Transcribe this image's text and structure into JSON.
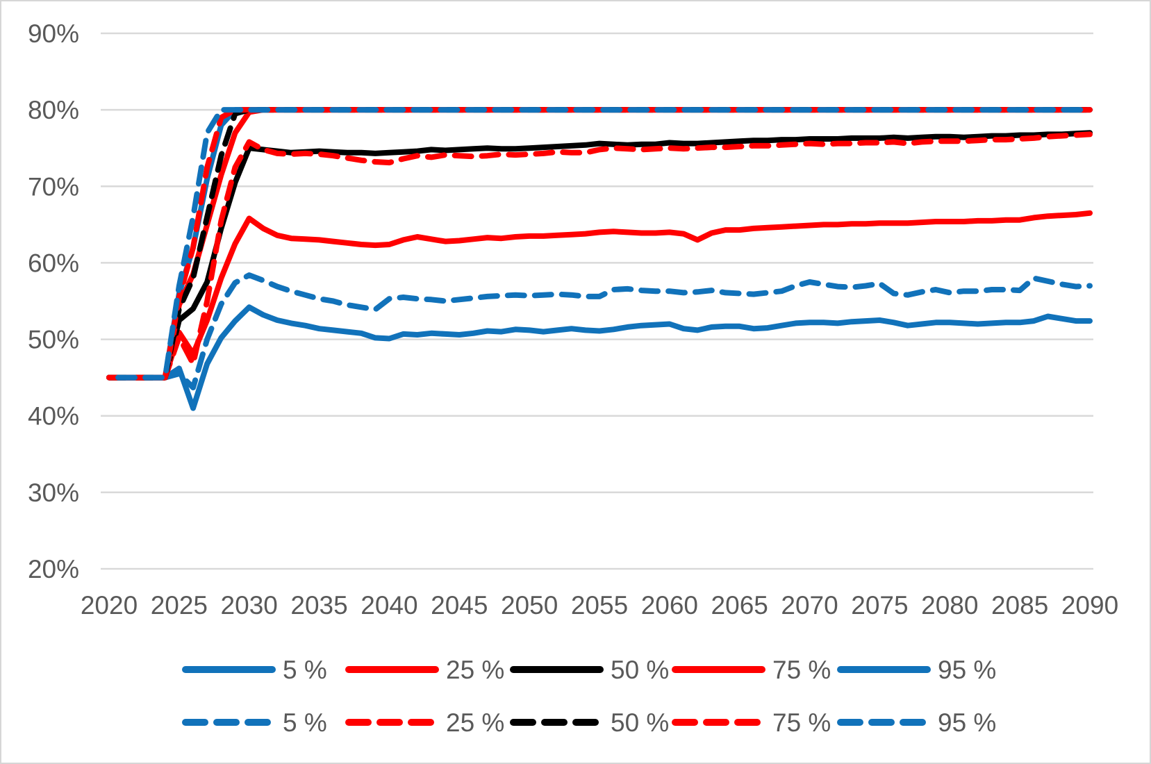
{
  "chart_data": {
    "type": "line",
    "title": "",
    "xlabel": "",
    "ylabel": "",
    "xlim": [
      2020,
      2090
    ],
    "ylim": [
      20,
      90
    ],
    "grid": "horizontal",
    "legend_position": "bottom-two-rows",
    "colors": {
      "blue": "#1172BA",
      "red": "#FF0000",
      "black": "#000000",
      "gridline": "#D9D9D9",
      "axis_text": "#595959",
      "background": "#FFFFFF",
      "frame_border": "#D6D6D6"
    },
    "y_ticks": [
      {
        "value": 90,
        "label": "90%"
      },
      {
        "value": 80,
        "label": "80%"
      },
      {
        "value": 70,
        "label": "70%"
      },
      {
        "value": 60,
        "label": "60%"
      },
      {
        "value": 50,
        "label": "50%"
      },
      {
        "value": 40,
        "label": "40%"
      },
      {
        "value": 30,
        "label": "30%"
      },
      {
        "value": 20,
        "label": "20%"
      }
    ],
    "x_ticks": [
      {
        "value": 2020,
        "label": "2020"
      },
      {
        "value": 2025,
        "label": "2025"
      },
      {
        "value": 2030,
        "label": "2030"
      },
      {
        "value": 2035,
        "label": "2035"
      },
      {
        "value": 2040,
        "label": "2040"
      },
      {
        "value": 2045,
        "label": "2045"
      },
      {
        "value": 2050,
        "label": "2050"
      },
      {
        "value": 2055,
        "label": "2055"
      },
      {
        "value": 2060,
        "label": "2060"
      },
      {
        "value": 2065,
        "label": "2065"
      },
      {
        "value": 2070,
        "label": "2070"
      },
      {
        "value": 2075,
        "label": "2075"
      },
      {
        "value": 2080,
        "label": "2080"
      },
      {
        "value": 2085,
        "label": "2085"
      },
      {
        "value": 2090,
        "label": "2090"
      }
    ],
    "x": [
      2020,
      2021,
      2022,
      2023,
      2024,
      2025,
      2026,
      2027,
      2028,
      2029,
      2030,
      2031,
      2032,
      2033,
      2034,
      2035,
      2036,
      2037,
      2038,
      2039,
      2040,
      2041,
      2042,
      2043,
      2044,
      2045,
      2046,
      2047,
      2048,
      2049,
      2050,
      2051,
      2052,
      2053,
      2054,
      2055,
      2056,
      2057,
      2058,
      2059,
      2060,
      2061,
      2062,
      2063,
      2064,
      2065,
      2066,
      2067,
      2068,
      2069,
      2070,
      2071,
      2072,
      2073,
      2074,
      2075,
      2076,
      2077,
      2078,
      2079,
      2080,
      2081,
      2082,
      2083,
      2084,
      2085,
      2086,
      2087,
      2088,
      2089,
      2090
    ],
    "series": [
      {
        "id": "p5_solid",
        "name": "5 %",
        "color": "#1172BA",
        "dashed": false,
        "dash_offset": 0,
        "values": [
          45,
          45,
          45,
          45,
          45,
          46.2,
          41,
          46.8,
          50.2,
          52.4,
          54.2,
          53.2,
          52.5,
          52.1,
          51.8,
          51.4,
          51.2,
          51,
          50.8,
          50.2,
          50.1,
          50.7,
          50.6,
          50.8,
          50.7,
          50.6,
          50.8,
          51.1,
          51,
          51.3,
          51.2,
          51,
          51.2,
          51.4,
          51.2,
          51.1,
          51.3,
          51.6,
          51.8,
          51.9,
          52,
          51.4,
          51.2,
          51.6,
          51.7,
          51.7,
          51.4,
          51.5,
          51.8,
          52.1,
          52.2,
          52.2,
          52.1,
          52.3,
          52.4,
          52.5,
          52.2,
          51.8,
          52,
          52.2,
          52.2,
          52.1,
          52,
          52.1,
          52.2,
          52.2,
          52.4,
          53,
          52.7,
          52.4,
          52.4
        ]
      },
      {
        "id": "p25_solid",
        "name": "25 %",
        "color": "#FF0000",
        "dashed": false,
        "dash_offset": 0,
        "values": [
          45,
          45,
          45,
          45,
          45,
          50.9,
          48.1,
          52.5,
          58,
          62.5,
          65.8,
          64.5,
          63.6,
          63.2,
          63.1,
          63,
          62.8,
          62.6,
          62.4,
          62.3,
          62.4,
          63,
          63.4,
          63.1,
          62.8,
          62.9,
          63.1,
          63.3,
          63.2,
          63.4,
          63.5,
          63.5,
          63.6,
          63.7,
          63.8,
          64,
          64.1,
          64,
          63.9,
          63.9,
          64,
          63.8,
          63,
          63.9,
          64.3,
          64.3,
          64.5,
          64.6,
          64.7,
          64.8,
          64.9,
          65,
          65,
          65.1,
          65.1,
          65.2,
          65.2,
          65.2,
          65.3,
          65.4,
          65.4,
          65.4,
          65.5,
          65.5,
          65.6,
          65.6,
          65.9,
          66.1,
          66.2,
          66.3,
          66.5
        ]
      },
      {
        "id": "p50_solid",
        "name": "50 %",
        "color": "#000000",
        "dashed": false,
        "dash_offset": 0,
        "values": [
          45,
          45,
          45,
          45,
          45,
          52.5,
          54,
          57.5,
          64.5,
          70.5,
          75,
          74.8,
          74.6,
          74.4,
          74.5,
          74.6,
          74.5,
          74.4,
          74.4,
          74.3,
          74.4,
          74.5,
          74.6,
          74.8,
          74.7,
          74.8,
          74.9,
          75,
          74.9,
          74.9,
          75,
          75.1,
          75.2,
          75.3,
          75.4,
          75.6,
          75.5,
          75.4,
          75.5,
          75.5,
          75.7,
          75.6,
          75.6,
          75.7,
          75.8,
          75.9,
          76,
          76,
          76.1,
          76.1,
          76.2,
          76.2,
          76.2,
          76.3,
          76.3,
          76.3,
          76.4,
          76.3,
          76.4,
          76.5,
          76.5,
          76.4,
          76.5,
          76.6,
          76.6,
          76.7,
          76.7,
          76.8,
          76.8,
          76.9,
          77
        ]
      },
      {
        "id": "p75_solid",
        "name": "75 %",
        "color": "#FF0000",
        "dashed": false,
        "dash_offset": 0,
        "values": [
          45,
          45,
          45,
          45,
          45,
          54.5,
          58.5,
          65,
          71.5,
          77,
          79.7,
          80,
          80,
          80,
          80,
          80,
          80,
          80,
          80,
          80,
          80,
          80,
          80,
          80,
          80,
          80,
          80,
          80,
          80,
          80,
          80,
          80,
          80,
          80,
          80,
          80,
          80,
          80,
          80,
          80,
          80,
          80,
          80,
          80,
          80,
          80,
          80,
          80,
          80,
          80,
          80,
          80,
          80,
          80,
          80,
          80,
          80,
          80,
          80,
          80,
          80,
          80,
          80,
          80,
          80,
          80,
          80,
          80,
          80,
          80,
          80
        ]
      },
      {
        "id": "p95_solid",
        "name": "95 %",
        "color": "#1172BA",
        "dashed": false,
        "dash_offset": 0,
        "values": [
          45,
          45,
          45,
          45,
          45,
          56,
          62,
          71,
          78,
          80,
          80,
          80,
          80,
          80,
          80,
          80,
          80,
          80,
          80,
          80,
          80,
          80,
          80,
          80,
          80,
          80,
          80,
          80,
          80,
          80,
          80,
          80,
          80,
          80,
          80,
          80,
          80,
          80,
          80,
          80,
          80,
          80,
          80,
          80,
          80,
          80,
          80,
          80,
          80,
          80,
          80,
          80,
          80,
          80,
          80,
          80,
          80,
          80,
          80,
          80,
          80,
          80,
          80,
          80,
          80,
          80,
          80,
          80,
          80,
          80,
          80
        ]
      },
      {
        "id": "p5_dashed",
        "name": "5 %",
        "color": "#1172BA",
        "dashed": true,
        "dash_offset": 0,
        "values": [
          45,
          45,
          45,
          45,
          45,
          45.5,
          43.7,
          50,
          54.6,
          57.4,
          58.4,
          57.7,
          56.9,
          56.3,
          55.8,
          55.3,
          55,
          54.5,
          54.2,
          53.9,
          55.3,
          55.5,
          55.3,
          55.2,
          55,
          55.2,
          55.4,
          55.6,
          55.7,
          55.8,
          55.7,
          55.8,
          55.9,
          55.8,
          55.6,
          55.6,
          56.5,
          56.6,
          56.4,
          56.3,
          56.3,
          56.1,
          56.2,
          56.4,
          56.1,
          56,
          55.9,
          56.1,
          56.3,
          57,
          57.5,
          57.2,
          56.9,
          56.8,
          57,
          57.3,
          56,
          55.8,
          56.2,
          56.5,
          56.1,
          56.3,
          56.3,
          56.5,
          56.5,
          56.4,
          58,
          57.6,
          57.2,
          56.9,
          57
        ]
      },
      {
        "id": "p25_dashed",
        "name": "25 %",
        "color": "#FF0000",
        "dashed": true,
        "dash_offset": 0,
        "values": [
          45,
          45,
          45,
          45,
          45,
          50.3,
          46.8,
          55,
          65.5,
          72.5,
          75.8,
          74.8,
          74.3,
          74.2,
          74.3,
          74.2,
          74,
          73.7,
          73.4,
          73.2,
          73.1,
          73.6,
          74,
          73.8,
          74.1,
          74,
          73.9,
          74,
          74.2,
          74.1,
          74.2,
          74.3,
          74.5,
          74.4,
          74.4,
          74.8,
          75,
          74.9,
          74.8,
          74.9,
          75,
          74.9,
          75,
          75.1,
          75.1,
          75.2,
          75.3,
          75.3,
          75.4,
          75.5,
          75.6,
          75.5,
          75.6,
          75.6,
          75.7,
          75.7,
          75.8,
          75.6,
          75.8,
          75.9,
          75.9,
          75.9,
          76,
          76.1,
          76.1,
          76.2,
          76.3,
          76.5,
          76.6,
          76.7,
          76.8
        ]
      },
      {
        "id": "p50_dashed",
        "name": "50 %",
        "color": "#000000",
        "dashed": true,
        "dash_offset": 0,
        "values": [
          45,
          45,
          45,
          45,
          45,
          54,
          58,
          66,
          74,
          79.5,
          80,
          80,
          80,
          80,
          80,
          80,
          80,
          80,
          80,
          80,
          80,
          80,
          80,
          80,
          80,
          80,
          80,
          80,
          80,
          80,
          80,
          80,
          80,
          80,
          80,
          80,
          80,
          80,
          80,
          80,
          80,
          80,
          80,
          80,
          80,
          80,
          80,
          80,
          80,
          80,
          80,
          80,
          80,
          80,
          80,
          80,
          80,
          80,
          80,
          80,
          80,
          80,
          80,
          80,
          80,
          80,
          80,
          80,
          80,
          80,
          80
        ]
      },
      {
        "id": "p75_dashed",
        "name": "75 %",
        "color": "#FF0000",
        "dashed": true,
        "dash_offset": 13,
        "values": [
          45,
          45,
          45,
          45,
          45,
          55.5,
          62,
          72.5,
          79,
          80,
          80,
          80,
          80,
          80,
          80,
          80,
          80,
          80,
          80,
          80,
          80,
          80,
          80,
          80,
          80,
          80,
          80,
          80,
          80,
          80,
          80,
          80,
          80,
          80,
          80,
          80,
          80,
          80,
          80,
          80,
          80,
          80,
          80,
          80,
          80,
          80,
          80,
          80,
          80,
          80,
          80,
          80,
          80,
          80,
          80,
          80,
          80,
          80,
          80,
          80,
          80,
          80,
          80,
          80,
          80,
          80,
          80,
          80,
          80,
          80,
          80
        ]
      },
      {
        "id": "p95_dashed",
        "name": "95 %",
        "color": "#1172BA",
        "dashed": true,
        "dash_offset": 26,
        "values": [
          45,
          45,
          45,
          45,
          45,
          57,
          66,
          77,
          80,
          80,
          80,
          80,
          80,
          80,
          80,
          80,
          80,
          80,
          80,
          80,
          80,
          80,
          80,
          80,
          80,
          80,
          80,
          80,
          80,
          80,
          80,
          80,
          80,
          80,
          80,
          80,
          80,
          80,
          80,
          80,
          80,
          80,
          80,
          80,
          80,
          80,
          80,
          80,
          80,
          80,
          80,
          80,
          80,
          80,
          80,
          80,
          80,
          80,
          80,
          80,
          80,
          80,
          80,
          80,
          80,
          80,
          80,
          80,
          80,
          80,
          80
        ]
      }
    ],
    "legend_rows": [
      {
        "style": "solid",
        "items": [
          {
            "label": "5 %",
            "color": "#1172BA"
          },
          {
            "label": "25 %",
            "color": "#FF0000"
          },
          {
            "label": "50 %",
            "color": "#000000"
          },
          {
            "label": "75 %",
            "color": "#FF0000"
          },
          {
            "label": "95 %",
            "color": "#1172BA"
          }
        ]
      },
      {
        "style": "dashed",
        "items": [
          {
            "label": "5 %",
            "color": "#1172BA"
          },
          {
            "label": "25 %",
            "color": "#FF0000"
          },
          {
            "label": "50 %",
            "color": "#000000"
          },
          {
            "label": "75 %",
            "color": "#FF0000"
          },
          {
            "label": "95 %",
            "color": "#1172BA"
          }
        ]
      }
    ]
  }
}
